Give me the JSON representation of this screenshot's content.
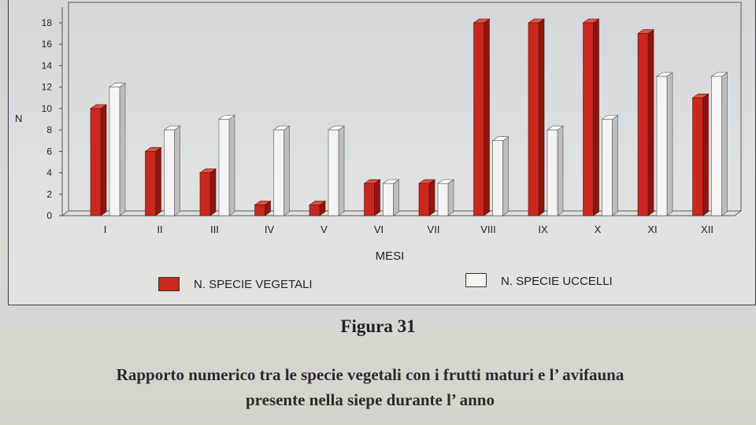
{
  "chart_data": {
    "type": "bar",
    "categories": [
      "I",
      "II",
      "III",
      "IV",
      "V",
      "VI",
      "VII",
      "VIII",
      "IX",
      "X",
      "XI",
      "XII"
    ],
    "series": [
      {
        "name": "N. SPECIE VEGETALI",
        "values": [
          10,
          6,
          4,
          1,
          1,
          3,
          3,
          18,
          18,
          18,
          17,
          11
        ]
      },
      {
        "name": "N. SPECIE UCCELLI",
        "values": [
          12,
          8,
          9,
          8,
          8,
          3,
          3,
          7,
          8,
          9,
          13,
          13
        ]
      }
    ],
    "xlabel": "MESI",
    "ylabel": "N",
    "ylim": [
      0,
      18
    ],
    "yticks": [
      0,
      2,
      4,
      6,
      8,
      10,
      12,
      14,
      16,
      18
    ],
    "grid": false,
    "legend_position": "bottom",
    "colors": {
      "vegetali": "#c8281e",
      "uccelli": "#f4f4f2"
    }
  },
  "figure_number": "Figura 31",
  "caption_line1": "Rapporto numerico tra le specie vegetali con i frutti maturi e l’ avifauna",
  "caption_line2": "presente nella siepe durante l’ anno"
}
